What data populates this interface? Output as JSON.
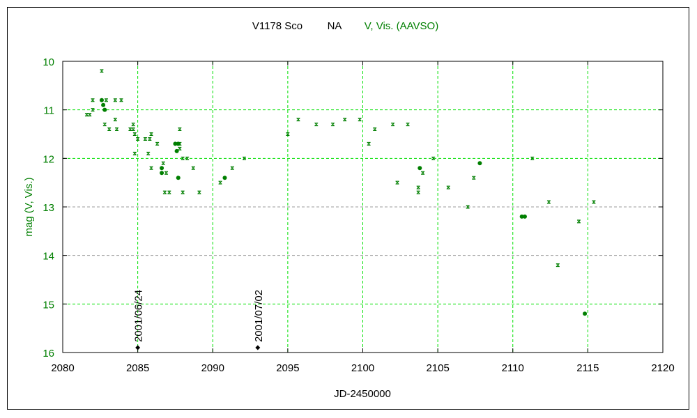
{
  "chart_data": {
    "type": "scatter",
    "title": {
      "star": "V1178 Sco",
      "type": "NA",
      "bands": "V, Vis. (AAVSO)"
    },
    "xlabel": "JD-2450000",
    "ylabel": "mag (V, Vis.)",
    "xlim": [
      2080,
      2120
    ],
    "ylim": [
      10,
      16
    ],
    "y_inverted": true,
    "grid": true,
    "x_ticks": [
      2080,
      2085,
      2090,
      2095,
      2100,
      2105,
      2110,
      2115,
      2120
    ],
    "y_ticks": [
      10,
      11,
      12,
      13,
      14,
      15,
      16
    ],
    "colors": {
      "data": "#007f00",
      "grid_major": "#00e000",
      "grid_minor": "#999999",
      "title_bands": "#007f00",
      "annotation": "#000000"
    },
    "series": [
      {
        "name": "Vis.",
        "marker": "cross",
        "points": [
          [
            2081.6,
            11.1
          ],
          [
            2081.8,
            11.1
          ],
          [
            2082.0,
            11.0
          ],
          [
            2082.0,
            10.8
          ],
          [
            2082.6,
            10.2
          ],
          [
            2082.9,
            10.8
          ],
          [
            2082.8,
            11.3
          ],
          [
            2083.1,
            11.4
          ],
          [
            2083.5,
            10.8
          ],
          [
            2083.6,
            11.4
          ],
          [
            2083.9,
            10.8
          ],
          [
            2083.5,
            11.2
          ],
          [
            2084.5,
            11.4
          ],
          [
            2084.7,
            11.4
          ],
          [
            2084.7,
            11.3
          ],
          [
            2084.8,
            11.5
          ],
          [
            2085.0,
            11.6
          ],
          [
            2084.8,
            11.9
          ],
          [
            2085.5,
            11.6
          ],
          [
            2085.7,
            11.9
          ],
          [
            2085.9,
            11.5
          ],
          [
            2085.8,
            11.6
          ],
          [
            2086.3,
            11.7
          ],
          [
            2085.9,
            12.2
          ],
          [
            2086.7,
            12.1
          ],
          [
            2086.9,
            12.3
          ],
          [
            2086.8,
            12.7
          ],
          [
            2087.1,
            12.7
          ],
          [
            2087.8,
            11.4
          ],
          [
            2087.8,
            11.8
          ],
          [
            2087.8,
            11.7
          ],
          [
            2088.0,
            12.7
          ],
          [
            2088.0,
            12.0
          ],
          [
            2088.3,
            12.0
          ],
          [
            2088.7,
            12.2
          ],
          [
            2089.1,
            12.7
          ],
          [
            2090.5,
            12.5
          ],
          [
            2091.3,
            12.2
          ],
          [
            2092.1,
            12.0
          ],
          [
            2095.0,
            11.5
          ],
          [
            2095.7,
            11.2
          ],
          [
            2096.9,
            11.3
          ],
          [
            2098.0,
            11.3
          ],
          [
            2098.8,
            11.2
          ],
          [
            2099.8,
            11.2
          ],
          [
            2100.4,
            11.7
          ],
          [
            2100.8,
            11.4
          ],
          [
            2102.0,
            11.3
          ],
          [
            2102.3,
            12.5
          ],
          [
            2103.0,
            11.3
          ],
          [
            2103.7,
            12.6
          ],
          [
            2103.7,
            12.7
          ],
          [
            2104.0,
            12.3
          ],
          [
            2104.7,
            12.0
          ],
          [
            2105.7,
            12.6
          ],
          [
            2107.0,
            13.0
          ],
          [
            2107.4,
            12.4
          ],
          [
            2111.3,
            12.0
          ],
          [
            2112.4,
            12.9
          ],
          [
            2113.0,
            14.2
          ],
          [
            2114.4,
            13.3
          ],
          [
            2115.4,
            12.9
          ]
        ]
      },
      {
        "name": "V",
        "marker": "dot",
        "points": [
          [
            2082.6,
            10.8
          ],
          [
            2082.7,
            10.9
          ],
          [
            2082.8,
            11.0
          ],
          [
            2087.5,
            11.7
          ],
          [
            2087.7,
            11.7
          ],
          [
            2087.6,
            11.85
          ],
          [
            2086.6,
            12.2
          ],
          [
            2086.6,
            12.3
          ],
          [
            2087.7,
            12.4
          ],
          [
            2090.8,
            12.4
          ],
          [
            2103.8,
            12.2
          ],
          [
            2107.8,
            12.1
          ],
          [
            2110.6,
            13.2
          ],
          [
            2110.8,
            13.2
          ],
          [
            2114.8,
            15.2
          ]
        ]
      }
    ],
    "annotations": [
      {
        "label": "2001/06/24",
        "x": 2085.0,
        "y": 15.9
      },
      {
        "label": "2001/07/02",
        "x": 2093.0,
        "y": 15.9
      }
    ]
  }
}
